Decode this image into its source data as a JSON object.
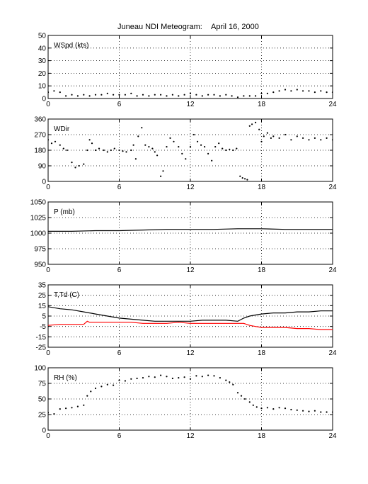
{
  "title": {
    "station": "Juneau NDI Meteogram:",
    "date": "April 16, 2000"
  },
  "colors": {
    "axis": "#000000",
    "grid": "#000000",
    "td": "#ff0000",
    "t": "#000000"
  },
  "chart_data": [
    {
      "type": "scatter",
      "label": "WSpd (kts)",
      "xlim": [
        0,
        24
      ],
      "xticks": [
        0,
        6,
        12,
        18,
        24
      ],
      "ylim": [
        0,
        50
      ],
      "yticks": [
        0,
        10,
        20,
        30,
        40,
        50
      ],
      "grid": true,
      "series": [
        {
          "color": "#000000",
          "style": "dots",
          "x": [
            0,
            0.5,
            1,
            1.5,
            2,
            2.5,
            3,
            3.5,
            4,
            4.5,
            5,
            5.5,
            6,
            6.5,
            7,
            7.5,
            8,
            8.5,
            9,
            9.5,
            10,
            10.5,
            11,
            11.5,
            12,
            12.5,
            13,
            13.5,
            14,
            14.5,
            15,
            15.5,
            16,
            16.5,
            17,
            17.5,
            18,
            18.5,
            19,
            19.5,
            20,
            20.5,
            21,
            21.5,
            22,
            22.5,
            23,
            23.5,
            24
          ],
          "y": [
            5,
            6,
            5,
            2,
            3,
            2,
            3,
            2,
            3,
            3,
            4,
            3,
            3,
            3,
            4,
            2,
            3,
            2,
            3,
            3,
            2,
            3,
            2,
            3,
            4,
            3,
            2,
            3,
            3,
            2,
            3,
            2,
            1,
            2,
            2,
            2,
            4,
            4,
            5,
            6,
            7,
            6,
            7,
            6,
            6,
            5,
            6,
            5,
            5
          ]
        }
      ]
    },
    {
      "type": "scatter",
      "label": "WDir",
      "xlim": [
        0,
        24
      ],
      "xticks": [
        0,
        6,
        12,
        18,
        24
      ],
      "ylim": [
        0,
        360
      ],
      "yticks": [
        0,
        90,
        180,
        270,
        360
      ],
      "grid": true,
      "series": [
        {
          "color": "#000000",
          "style": "dots",
          "x": [
            0,
            0.3,
            0.6,
            1,
            1.3,
            1.6,
            2,
            2.3,
            2.6,
            3,
            3.3,
            3.5,
            3.7,
            4,
            4.3,
            4.7,
            5,
            5.3,
            5.6,
            6,
            6.3,
            6.6,
            7,
            7.2,
            7.4,
            7.6,
            7.9,
            8.2,
            8.5,
            8.8,
            9,
            9.2,
            9.5,
            9.7,
            10,
            10.3,
            10.6,
            11,
            11.3,
            11.6,
            12,
            12.3,
            12.6,
            12.9,
            13.2,
            13.5,
            13.8,
            14.1,
            14.4,
            14.7,
            15,
            15.3,
            15.6,
            15.9,
            16.2,
            16.4,
            16.6,
            16.8,
            17,
            17.2,
            17.5,
            17.8,
            18,
            18.2,
            18.5,
            18.8,
            19,
            19.5,
            20,
            20.5,
            21,
            21.5,
            22,
            22.5,
            23,
            23.5,
            24
          ],
          "y": [
            240,
            220,
            230,
            210,
            190,
            180,
            110,
            80,
            90,
            100,
            180,
            240,
            220,
            180,
            190,
            180,
            170,
            180,
            190,
            180,
            175,
            170,
            180,
            210,
            130,
            260,
            310,
            210,
            200,
            190,
            170,
            150,
            30,
            60,
            200,
            250,
            230,
            200,
            160,
            130,
            200,
            270,
            230,
            210,
            200,
            160,
            120,
            200,
            220,
            190,
            180,
            185,
            180,
            190,
            30,
            20,
            15,
            10,
            320,
            330,
            340,
            300,
            230,
            260,
            280,
            250,
            260,
            250,
            270,
            240,
            260,
            250,
            240,
            250,
            240,
            250,
            240
          ]
        }
      ]
    },
    {
      "type": "line",
      "label": "P (mb)",
      "xlim": [
        0,
        24
      ],
      "xticks": [
        0,
        6,
        12,
        18,
        24
      ],
      "ylim": [
        950,
        1050
      ],
      "yticks": [
        950,
        975,
        1000,
        1025,
        1050
      ],
      "grid": true,
      "series": [
        {
          "color": "#000000",
          "style": "line",
          "x": [
            0,
            2,
            4,
            6,
            8,
            10,
            12,
            14,
            16,
            18,
            20,
            22,
            24
          ],
          "y": [
            1003,
            1003,
            1004,
            1004,
            1005,
            1006,
            1006,
            1006,
            1007,
            1007,
            1006,
            1006,
            1006
          ]
        }
      ]
    },
    {
      "type": "line",
      "label": "T,Td (C)",
      "xlim": [
        0,
        24
      ],
      "xticks": [
        0,
        6,
        12,
        18,
        24
      ],
      "ylim": [
        -25,
        35
      ],
      "yticks": [
        -25,
        -15,
        -5,
        5,
        15,
        25,
        35
      ],
      "grid": true,
      "series": [
        {
          "color": "#000000",
          "style": "line",
          "x": [
            0,
            1,
            2,
            3,
            4,
            5,
            6,
            7,
            8,
            9,
            10,
            11,
            12,
            13,
            14,
            15,
            16,
            16.5,
            17,
            17.5,
            18,
            19,
            20,
            21,
            22,
            23,
            24
          ],
          "y": [
            14,
            12,
            11,
            9,
            7,
            5,
            3,
            2,
            1,
            0,
            0,
            0,
            0,
            1,
            1,
            1,
            0,
            3,
            5,
            6,
            7,
            8,
            8,
            9,
            9,
            10,
            10
          ]
        },
        {
          "color": "#ff0000",
          "style": "line",
          "x": [
            0,
            1,
            2,
            3,
            3.3,
            3.5,
            4,
            5,
            6,
            7,
            8,
            9,
            10,
            11,
            12,
            13,
            14,
            15,
            16,
            16.5,
            17,
            17.5,
            18,
            19,
            20,
            21,
            22,
            23,
            24
          ],
          "y": [
            -4,
            -3,
            -3,
            -3,
            0,
            -1,
            -1,
            -1,
            -1,
            -1,
            -2,
            -2,
            -2,
            -1,
            -2,
            -2,
            -2,
            -2,
            -2,
            -2,
            -4,
            -5,
            -6,
            -6,
            -6,
            -7,
            -7,
            -8,
            -8
          ]
        }
      ]
    },
    {
      "type": "scatter",
      "label": "RH (%)",
      "xlim": [
        0,
        24
      ],
      "xticks": [
        0,
        6,
        12,
        18,
        24
      ],
      "ylim": [
        0,
        100
      ],
      "yticks": [
        0,
        25,
        50,
        75,
        100
      ],
      "grid": true,
      "series": [
        {
          "color": "#000000",
          "style": "dots",
          "x": [
            0,
            0.5,
            1,
            1.5,
            2,
            2.5,
            3,
            3.3,
            3.6,
            4,
            4.5,
            5,
            5.5,
            6,
            6.5,
            7,
            7.5,
            8,
            8.5,
            9,
            9.5,
            10,
            10.5,
            11,
            11.5,
            12,
            12.5,
            13,
            13.5,
            14,
            14.5,
            15,
            15.3,
            15.6,
            16,
            16.3,
            16.6,
            17,
            17.3,
            17.6,
            18,
            18.5,
            19,
            19.5,
            20,
            20.5,
            21,
            21.5,
            22,
            22.5,
            23,
            23.5,
            24
          ],
          "y": [
            28,
            26,
            34,
            35,
            36,
            38,
            40,
            55,
            62,
            67,
            70,
            73,
            72,
            80,
            79,
            82,
            83,
            84,
            86,
            85,
            88,
            86,
            83,
            84,
            85,
            82,
            87,
            86,
            88,
            87,
            84,
            80,
            77,
            73,
            60,
            55,
            50,
            45,
            40,
            37,
            35,
            36,
            34,
            36,
            35,
            33,
            32,
            31,
            30,
            31,
            29,
            29,
            29
          ]
        }
      ]
    }
  ]
}
